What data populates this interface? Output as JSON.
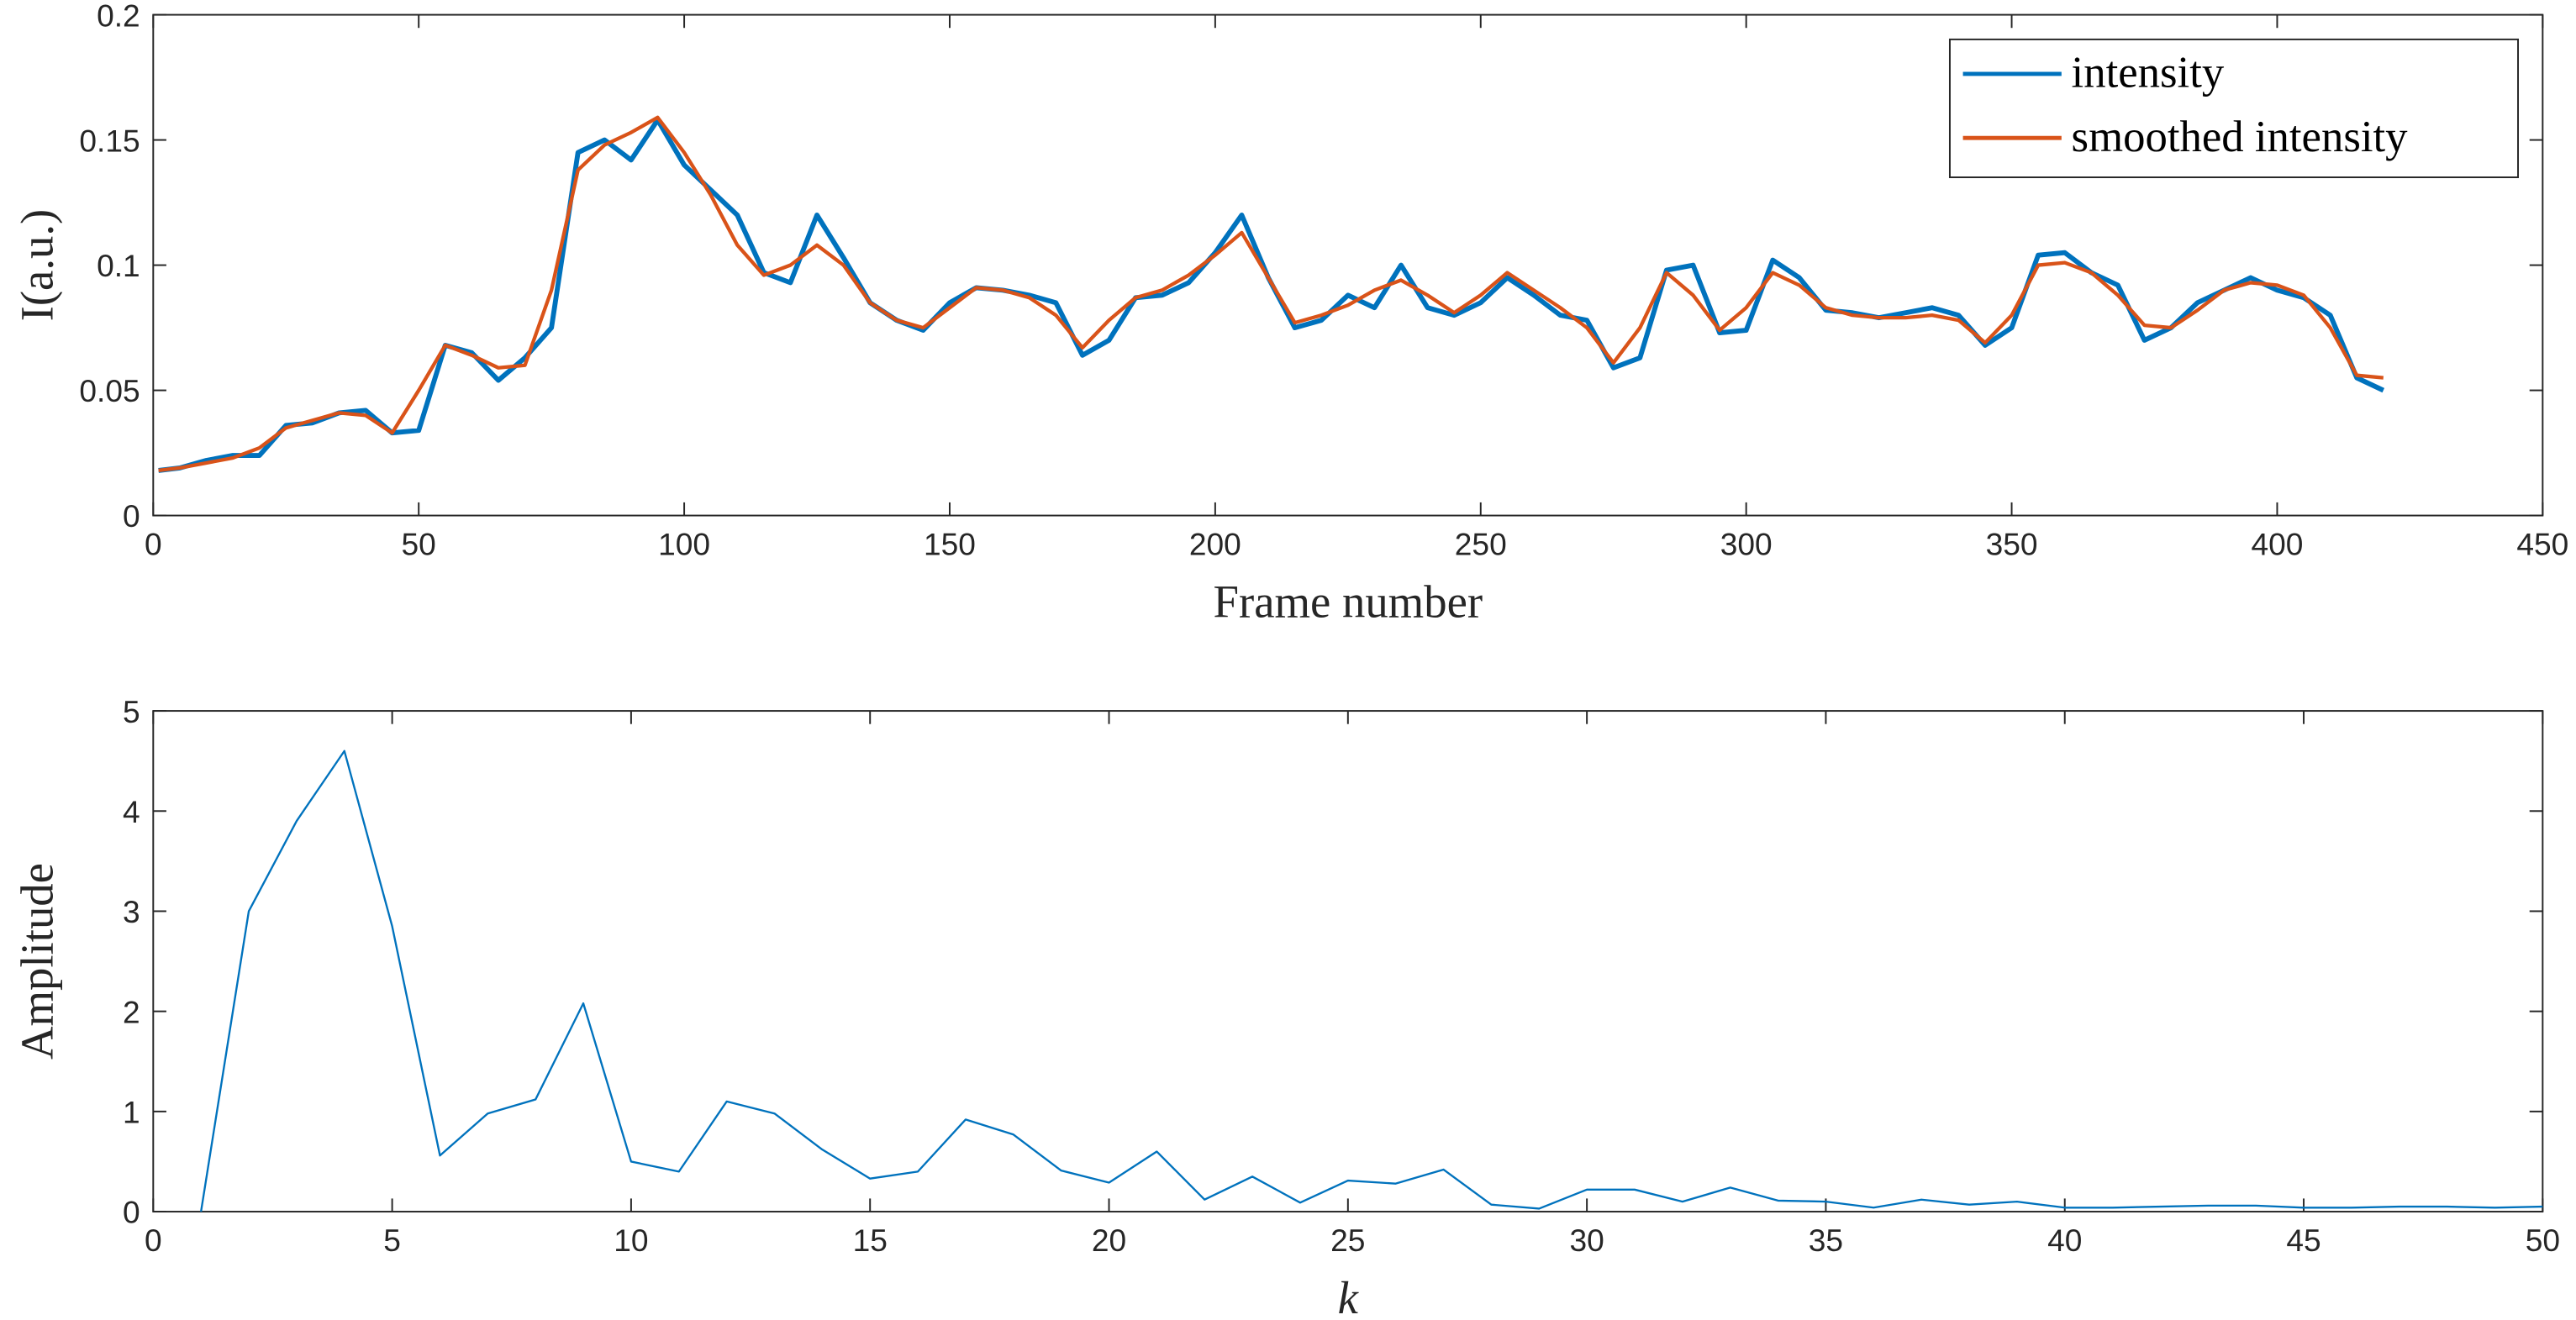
{
  "chart_data": [
    {
      "type": "line",
      "xlabel": "Frame number",
      "ylabel": "I(a.u.)",
      "x": [
        1,
        5,
        10,
        15,
        20,
        25,
        30,
        35,
        40,
        45,
        50,
        55,
        60,
        65,
        70,
        75,
        80,
        85,
        90,
        95,
        100,
        105,
        110,
        115,
        120,
        125,
        130,
        135,
        140,
        145,
        150,
        155,
        160,
        165,
        170,
        175,
        180,
        185,
        190,
        195,
        200,
        205,
        210,
        215,
        220,
        225,
        230,
        235,
        240,
        245,
        250,
        255,
        260,
        265,
        270,
        275,
        280,
        285,
        290,
        295,
        300,
        305,
        310,
        315,
        320,
        325,
        330,
        335,
        340,
        345,
        350,
        355,
        360,
        365,
        370,
        375,
        380,
        385,
        390,
        395,
        400,
        405,
        410,
        415,
        420
      ],
      "series": [
        {
          "name": "intensity",
          "color": "#0072BD",
          "values": [
            0.018,
            0.019,
            0.022,
            0.024,
            0.024,
            0.036,
            0.037,
            0.041,
            0.042,
            0.033,
            0.034,
            0.068,
            0.065,
            0.054,
            0.063,
            0.075,
            0.145,
            0.15,
            0.142,
            0.158,
            0.14,
            0.13,
            0.12,
            0.097,
            0.093,
            0.12,
            0.103,
            0.085,
            0.078,
            0.074,
            0.085,
            0.091,
            0.09,
            0.088,
            0.085,
            0.064,
            0.07,
            0.087,
            0.088,
            0.093,
            0.105,
            0.12,
            0.095,
            0.075,
            0.078,
            0.088,
            0.083,
            0.1,
            0.083,
            0.08,
            0.085,
            0.095,
            0.088,
            0.08,
            0.078,
            0.059,
            0.063,
            0.098,
            0.1,
            0.073,
            0.074,
            0.102,
            0.095,
            0.082,
            0.081,
            0.079,
            0.081,
            0.083,
            0.08,
            0.068,
            0.075,
            0.104,
            0.105,
            0.097,
            0.092,
            0.07,
            0.075,
            0.085,
            0.09,
            0.095,
            0.09,
            0.087,
            0.08,
            0.055,
            0.05
          ]
        },
        {
          "name": "smoothed intensity",
          "color": "#D95319",
          "values": [
            0.018,
            0.019,
            0.021,
            0.023,
            0.027,
            0.035,
            0.038,
            0.041,
            0.04,
            0.033,
            0.05,
            0.068,
            0.064,
            0.059,
            0.06,
            0.09,
            0.138,
            0.148,
            0.153,
            0.159,
            0.145,
            0.128,
            0.108,
            0.096,
            0.1,
            0.108,
            0.1,
            0.085,
            0.078,
            0.075,
            0.083,
            0.091,
            0.09,
            0.087,
            0.08,
            0.067,
            0.078,
            0.087,
            0.09,
            0.096,
            0.104,
            0.113,
            0.095,
            0.077,
            0.08,
            0.084,
            0.09,
            0.094,
            0.088,
            0.081,
            0.088,
            0.097,
            0.09,
            0.083,
            0.075,
            0.061,
            0.075,
            0.097,
            0.088,
            0.074,
            0.083,
            0.097,
            0.092,
            0.083,
            0.08,
            0.079,
            0.079,
            0.08,
            0.078,
            0.069,
            0.08,
            0.1,
            0.101,
            0.097,
            0.088,
            0.076,
            0.075,
            0.082,
            0.09,
            0.093,
            0.092,
            0.088,
            0.075,
            0.056,
            0.055
          ]
        }
      ],
      "xlim": [
        0,
        450
      ],
      "xticks": [
        0,
        50,
        100,
        150,
        200,
        250,
        300,
        350,
        400,
        450
      ],
      "ylim": [
        0,
        0.2
      ],
      "yticks": [
        0,
        0.05,
        0.1,
        0.15,
        0.2
      ],
      "legend": "northeast"
    },
    {
      "type": "line",
      "xlabel": "k",
      "ylabel": "Amplitude",
      "x": [
        1,
        2,
        3,
        4,
        5,
        6,
        7,
        8,
        9,
        10,
        11,
        12,
        13,
        14,
        15,
        16,
        17,
        18,
        19,
        20,
        21,
        22,
        23,
        24,
        25,
        26,
        27,
        28,
        29,
        30,
        31,
        32,
        33,
        34,
        35,
        36,
        37,
        38,
        39,
        40,
        41,
        42,
        43,
        44,
        45,
        46,
        47,
        48,
        49,
        50
      ],
      "series": [
        {
          "color": "#0072BD",
          "values": [
            0,
            3.0,
            3.9,
            4.6,
            2.85,
            0.56,
            0.98,
            1.12,
            2.08,
            0.5,
            0.4,
            1.1,
            0.98,
            0.62,
            0.33,
            0.4,
            0.92,
            0.77,
            0.41,
            0.29,
            0.6,
            0.12,
            0.35,
            0.09,
            0.31,
            0.28,
            0.42,
            0.07,
            0.03,
            0.22,
            0.22,
            0.1,
            0.24,
            0.11,
            0.1,
            0.04,
            0.12,
            0.07,
            0.1,
            0.04,
            0.04,
            0.05,
            0.06,
            0.06,
            0.04,
            0.04,
            0.05,
            0.05,
            0.04,
            0.05
          ]
        }
      ],
      "xlim": [
        0,
        50
      ],
      "xticks": [
        0,
        5,
        10,
        15,
        20,
        25,
        30,
        35,
        40,
        45,
        50
      ],
      "ylim": [
        0,
        5
      ],
      "yticks": [
        0,
        1,
        2,
        3,
        4,
        5
      ]
    }
  ]
}
